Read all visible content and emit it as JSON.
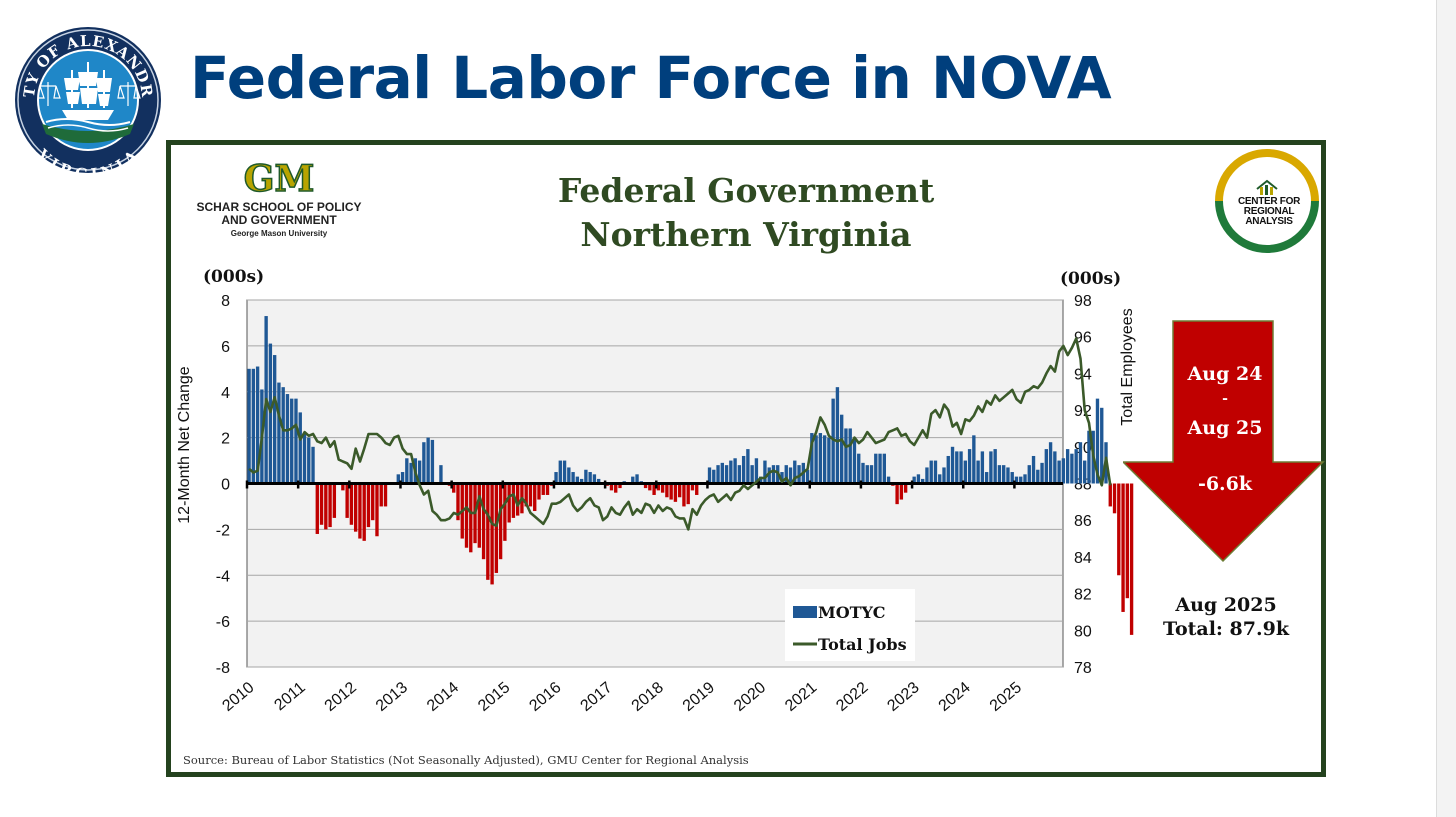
{
  "header": {
    "title": "Federal Labor Force in NOVA",
    "seal_text_top": "CITY OF ALEXANDRIA",
    "seal_text_bottom": "VIRGINIA"
  },
  "logos": {
    "gm_mark": "GM",
    "school_line1": "SCHAR SCHOOL OF POLICY",
    "school_line2": "AND GOVERNMENT",
    "university": "George Mason University",
    "cra_line1": "CENTER FOR",
    "cra_line2": "REGIONAL",
    "cra_line3": "ANALYSIS"
  },
  "colors": {
    "title_blue": "#003f7d",
    "panel_green": "#24421e",
    "bar_positive": "#1f5895",
    "bar_negative": "#c00000",
    "line_green": "#3b5a2a",
    "arrow_red": "#c00000"
  },
  "callout": {
    "line1": "Aug 24",
    "line2": "-",
    "line3": "Aug 25",
    "change": "-6.6k",
    "summary_line1": "Aug 2025",
    "summary_line2": "Total: 87.9k"
  },
  "source": "Source: Bureau of Labor Statistics (Not Seasonally Adjusted), GMU Center for Regional Analysis",
  "chart_data": {
    "type": "bar",
    "title_line1": "Federal Government",
    "title_line2": "Northern Virginia",
    "left_unit": "(000s)",
    "right_unit": "(000s)",
    "left_axis_label": "12-Month Net Change",
    "right_axis_label": "Total Employees",
    "left_ylim": [
      -8,
      8
    ],
    "left_ticks": [
      8,
      6,
      4,
      2,
      0,
      -2,
      -4,
      -6,
      -8
    ],
    "right_ylim": [
      78,
      98
    ],
    "right_ticks": [
      98,
      96,
      94,
      92,
      90,
      88,
      86,
      84,
      82,
      80,
      78
    ],
    "x_range": [
      2010,
      2025.95
    ],
    "x_tick_labels": [
      "2010",
      "2011",
      "2012",
      "2013",
      "2014",
      "2015",
      "2016",
      "2017",
      "2018",
      "2019",
      "2020",
      "2021",
      "2022",
      "2023",
      "2024",
      "2025"
    ],
    "grid": true,
    "legend": {
      "position": "bottom-center",
      "bar_label": "MOTYC",
      "line_label": "Total Jobs"
    },
    "series": [
      {
        "name": "MOTYC",
        "kind": "bar",
        "start_year": 2010,
        "frequency": "monthly",
        "values": [
          5.0,
          5.0,
          5.1,
          4.1,
          7.3,
          6.1,
          5.6,
          4.4,
          4.2,
          3.9,
          3.7,
          3.7,
          3.1,
          2.2,
          2.0,
          1.6,
          -2.2,
          -1.8,
          -2.0,
          -1.9,
          -1.5,
          0.0,
          -0.3,
          -1.5,
          -1.8,
          -2.1,
          -2.4,
          -2.5,
          -1.9,
          -1.6,
          -2.3,
          -1.0,
          -1.0,
          0.0,
          0.0,
          0.4,
          0.5,
          1.1,
          0.9,
          1.1,
          1.0,
          1.8,
          2.0,
          1.9,
          0.0,
          0.8,
          0.0,
          -0.1,
          -0.4,
          -1.6,
          -2.4,
          -2.8,
          -3.0,
          -2.6,
          -2.8,
          -3.3,
          -4.2,
          -4.4,
          -3.9,
          -3.3,
          -2.5,
          -1.7,
          -1.5,
          -1.4,
          -1.3,
          -1.0,
          -1.0,
          -1.2,
          -0.7,
          -0.5,
          -0.5,
          -0.1,
          0.5,
          1.0,
          1.0,
          0.7,
          0.5,
          0.3,
          0.2,
          0.6,
          0.5,
          0.4,
          0.2,
          0.0,
          -0.1,
          -0.3,
          -0.4,
          -0.2,
          0.1,
          0.0,
          0.3,
          0.4,
          0.1,
          -0.2,
          -0.3,
          -0.5,
          -0.3,
          -0.4,
          -0.6,
          -0.7,
          -0.8,
          -0.6,
          -1.0,
          -0.9,
          -0.3,
          -0.5,
          0.0,
          0.0,
          0.7,
          0.6,
          0.8,
          0.9,
          0.8,
          1.0,
          1.1,
          0.8,
          1.2,
          1.5,
          0.8,
          1.1,
          0.3,
          1.0,
          0.7,
          0.8,
          0.8,
          0.5,
          0.8,
          0.7,
          1.0,
          0.8,
          0.9,
          0.6,
          2.2,
          2.1,
          2.2,
          2.1,
          2.0,
          3.7,
          4.2,
          3.0,
          2.4,
          2.4,
          2.0,
          1.3,
          0.9,
          0.8,
          0.8,
          1.3,
          1.3,
          1.3,
          0.3,
          -0.1,
          -0.9,
          -0.7,
          -0.4,
          0.0,
          0.3,
          0.4,
          0.2,
          0.7,
          1.0,
          1.0,
          0.4,
          0.7,
          1.2,
          1.6,
          1.4,
          1.4,
          1.0,
          1.5,
          2.1,
          1.0,
          1.4,
          0.5,
          1.4,
          1.5,
          0.8,
          0.8,
          0.7,
          0.5,
          0.3,
          0.3,
          0.4,
          0.8,
          1.2,
          0.6,
          0.9,
          1.5,
          1.8,
          1.4,
          1.0,
          1.1,
          1.5,
          1.3,
          1.5,
          1.8,
          1.0,
          2.3,
          2.3,
          3.7,
          3.3,
          1.8,
          -1.0,
          -1.3,
          -4.0,
          -5.6,
          -5.0,
          -6.6
        ]
      },
      {
        "name": "Total Jobs",
        "kind": "line",
        "axis": "right",
        "start_year": 2010,
        "frequency": "monthly",
        "values": [
          88.8,
          88.6,
          88.7,
          90.5,
          92.6,
          91.9,
          92.7,
          91.7,
          90.9,
          90.9,
          91.0,
          91.2,
          90.4,
          90.8,
          90.6,
          90.7,
          90.3,
          90.2,
          90.5,
          90.0,
          90.3,
          89.3,
          89.2,
          89.1,
          88.8,
          89.9,
          89.2,
          89.9,
          90.7,
          90.7,
          90.7,
          90.5,
          90.2,
          90.1,
          90.5,
          90.6,
          89.9,
          89.6,
          89.6,
          88.6,
          87.9,
          87.4,
          87.6,
          86.5,
          86.3,
          86.0,
          86.0,
          86.1,
          86.4,
          86.3,
          86.5,
          86.7,
          86.4,
          86.4,
          87.3,
          86.6,
          86.3,
          85.8,
          85.7,
          86.6,
          86.9,
          87.3,
          87.4,
          86.8,
          87.2,
          86.9,
          86.4,
          86.2,
          86.0,
          85.8,
          86.2,
          86.9,
          86.9,
          87.0,
          87.2,
          87.4,
          86.8,
          86.5,
          86.7,
          87.0,
          87.2,
          86.8,
          86.7,
          86.0,
          86.2,
          86.7,
          86.4,
          86.3,
          86.7,
          87.0,
          86.3,
          86.6,
          86.4,
          86.9,
          86.8,
          86.4,
          86.8,
          86.5,
          86.7,
          86.6,
          86.2,
          86.1,
          86.1,
          85.5,
          86.6,
          86.3,
          86.8,
          87.1,
          87.3,
          87.4,
          87.0,
          87.2,
          87.4,
          87.1,
          87.5,
          87.6,
          87.9,
          87.7,
          87.9,
          88.1,
          88.3,
          88.3,
          88.6,
          88.7,
          88.6,
          88.1,
          88.3,
          87.9,
          88.3,
          88.4,
          88.6,
          88.8,
          90.2,
          90.8,
          91.6,
          91.2,
          90.6,
          90.4,
          90.3,
          90.4,
          90.0,
          90.1,
          90.5,
          90.2,
          90.4,
          90.8,
          90.5,
          90.2,
          90.3,
          90.4,
          90.8,
          90.9,
          91.0,
          90.6,
          90.7,
          90.3,
          90.1,
          90.5,
          90.9,
          90.5,
          91.8,
          92.0,
          91.6,
          92.3,
          92.0,
          91.1,
          91.3,
          90.7,
          91.5,
          91.4,
          91.7,
          92.2,
          91.9,
          92.5,
          92.3,
          92.8,
          92.5,
          92.7,
          92.9,
          93.1,
          92.6,
          92.4,
          93.0,
          93.1,
          93.3,
          93.2,
          93.5,
          94.0,
          94.4,
          94.1,
          95.2,
          95.5,
          95.0,
          95.4,
          95.9,
          94.8,
          92.0,
          91.3,
          89.5,
          88.5,
          87.9,
          89.4,
          87.9
        ]
      }
    ]
  }
}
